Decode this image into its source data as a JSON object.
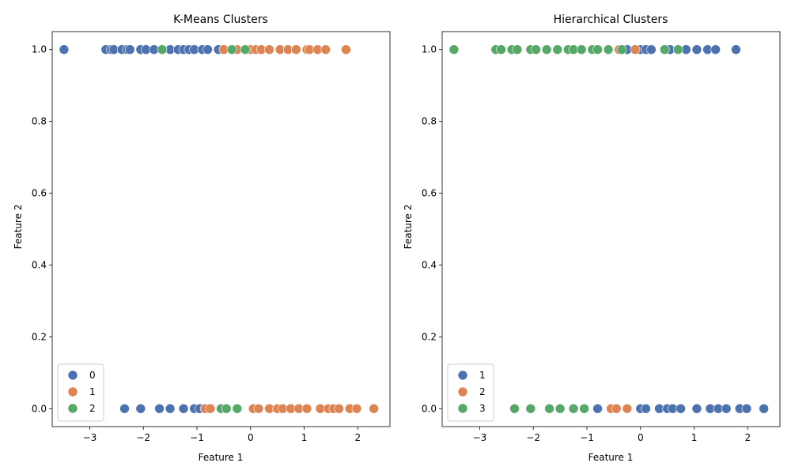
{
  "colors": {
    "0": "#4c72b0",
    "1": "#dd8452",
    "2": "#55a868"
  },
  "chart_data": [
    {
      "type": "scatter",
      "title": "K-Means Clusters",
      "xlabel": "Feature 1",
      "ylabel": "Feature 2",
      "xlim": [
        -3.7,
        2.6
      ],
      "ylim": [
        -0.05,
        1.05
      ],
      "xticks": [
        -3,
        -2,
        -1,
        0,
        1,
        2
      ],
      "yticks": [
        0.0,
        0.2,
        0.4,
        0.6,
        0.8,
        1.0
      ],
      "xtick_labels": [
        "−3",
        "−2",
        "−1",
        "0",
        "1",
        "2"
      ],
      "ytick_labels": [
        "0.0",
        "0.2",
        "0.4",
        "0.6",
        "0.8",
        "1.0"
      ],
      "grid": false,
      "legend_position": "lower-left",
      "series": [
        {
          "name": "0",
          "color": "#4c72b0",
          "points": [
            [
              -3.48,
              1
            ],
            [
              -2.7,
              1
            ],
            [
              -2.6,
              1
            ],
            [
              -2.55,
              1
            ],
            [
              -2.4,
              1
            ],
            [
              -2.3,
              1
            ],
            [
              -2.25,
              1
            ],
            [
              -2.05,
              1
            ],
            [
              -1.95,
              1
            ],
            [
              -1.8,
              1
            ],
            [
              -1.5,
              1
            ],
            [
              -1.35,
              1
            ],
            [
              -1.25,
              1
            ],
            [
              -1.15,
              1
            ],
            [
              -1.05,
              1
            ],
            [
              -0.9,
              1
            ],
            [
              -0.8,
              1
            ],
            [
              -0.6,
              1
            ],
            [
              -2.35,
              0
            ],
            [
              -2.05,
              0
            ],
            [
              -1.7,
              0
            ],
            [
              -1.5,
              0
            ],
            [
              -1.25,
              0
            ],
            [
              -1.05,
              0
            ],
            [
              -0.95,
              0
            ],
            [
              -0.8,
              0
            ]
          ]
        },
        {
          "name": "1",
          "color": "#dd8452",
          "points": [
            [
              -0.5,
              1
            ],
            [
              -0.25,
              1
            ],
            [
              0.0,
              1
            ],
            [
              0.1,
              1
            ],
            [
              0.2,
              1
            ],
            [
              0.35,
              1
            ],
            [
              0.55,
              1
            ],
            [
              0.7,
              1
            ],
            [
              0.85,
              1
            ],
            [
              1.05,
              1
            ],
            [
              1.1,
              1
            ],
            [
              1.25,
              1
            ],
            [
              1.4,
              1
            ],
            [
              1.78,
              1
            ],
            [
              -0.85,
              0
            ],
            [
              -0.75,
              0
            ],
            [
              0.05,
              0
            ],
            [
              0.15,
              0
            ],
            [
              0.35,
              0
            ],
            [
              0.5,
              0
            ],
            [
              0.6,
              0
            ],
            [
              0.75,
              0
            ],
            [
              0.9,
              0
            ],
            [
              1.05,
              0
            ],
            [
              1.3,
              0
            ],
            [
              1.45,
              0
            ],
            [
              1.55,
              0
            ],
            [
              1.65,
              0
            ],
            [
              1.85,
              0
            ],
            [
              1.98,
              0
            ],
            [
              2.3,
              0
            ]
          ]
        },
        {
          "name": "2",
          "color": "#55a868",
          "points": [
            [
              -1.65,
              1
            ],
            [
              -0.35,
              1
            ],
            [
              -0.1,
              1
            ],
            [
              -0.55,
              0
            ],
            [
              -0.45,
              0
            ],
            [
              -0.25,
              0
            ]
          ]
        }
      ]
    },
    {
      "type": "scatter",
      "title": "Hierarchical Clusters",
      "xlabel": "Feature 1",
      "ylabel": "Feature 2",
      "xlim": [
        -3.7,
        2.6
      ],
      "ylim": [
        -0.05,
        1.05
      ],
      "xticks": [
        -3,
        -2,
        -1,
        0,
        1,
        2
      ],
      "yticks": [
        0.0,
        0.2,
        0.4,
        0.6,
        0.8,
        1.0
      ],
      "xtick_labels": [
        "−3",
        "−2",
        "−1",
        "0",
        "1",
        "2"
      ],
      "ytick_labels": [
        "0.0",
        "0.2",
        "0.4",
        "0.6",
        "0.8",
        "1.0"
      ],
      "grid": false,
      "legend_position": "lower-left",
      "series": [
        {
          "name": "1",
          "color": "#4c72b0",
          "points": [
            [
              -0.25,
              1
            ],
            [
              0.0,
              1
            ],
            [
              0.1,
              1
            ],
            [
              0.2,
              1
            ],
            [
              0.55,
              1
            ],
            [
              0.85,
              1
            ],
            [
              1.05,
              1
            ],
            [
              1.25,
              1
            ],
            [
              1.4,
              1
            ],
            [
              1.78,
              1
            ],
            [
              -0.8,
              0
            ],
            [
              0.0,
              0
            ],
            [
              0.1,
              0
            ],
            [
              0.35,
              0
            ],
            [
              0.5,
              0
            ],
            [
              0.6,
              0
            ],
            [
              0.75,
              0
            ],
            [
              1.05,
              0
            ],
            [
              1.3,
              0
            ],
            [
              1.45,
              0
            ],
            [
              1.6,
              0
            ],
            [
              1.85,
              0
            ],
            [
              1.98,
              0
            ],
            [
              2.3,
              0
            ]
          ]
        },
        {
          "name": "2",
          "color": "#dd8452",
          "points": [
            [
              -0.4,
              1
            ],
            [
              -0.1,
              1
            ],
            [
              -0.55,
              0
            ],
            [
              -0.45,
              0
            ],
            [
              -0.25,
              0
            ]
          ]
        },
        {
          "name": "3",
          "color": "#55a868",
          "points": [
            [
              -3.48,
              1
            ],
            [
              -2.7,
              1
            ],
            [
              -2.6,
              1
            ],
            [
              -2.4,
              1
            ],
            [
              -2.3,
              1
            ],
            [
              -2.05,
              1
            ],
            [
              -1.95,
              1
            ],
            [
              -1.75,
              1
            ],
            [
              -1.55,
              1
            ],
            [
              -1.35,
              1
            ],
            [
              -1.25,
              1
            ],
            [
              -1.1,
              1
            ],
            [
              -0.9,
              1
            ],
            [
              -0.8,
              1
            ],
            [
              -0.6,
              1
            ],
            [
              -0.35,
              1
            ],
            [
              0.45,
              1
            ],
            [
              0.7,
              1
            ],
            [
              -2.35,
              0
            ],
            [
              -2.05,
              0
            ],
            [
              -1.7,
              0
            ],
            [
              -1.5,
              0
            ],
            [
              -1.25,
              0
            ],
            [
              -1.05,
              0
            ]
          ]
        }
      ]
    }
  ]
}
